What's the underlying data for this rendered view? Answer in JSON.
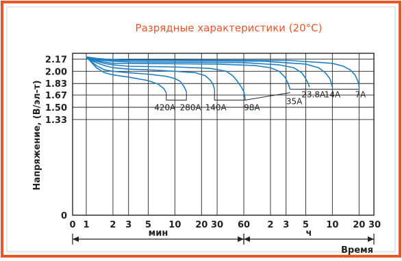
{
  "chart_data": {
    "type": "line",
    "title": "Разрядные характеристики (20°C)",
    "ylabel": "Напряжение, (В/эл-т)",
    "xlabel": "Время",
    "x_axis_segments": [
      {
        "label": "мин",
        "from": 1,
        "to": 60
      },
      {
        "label": "ч",
        "from": 60,
        "to": 1800
      }
    ],
    "x_scale": "log",
    "x_unit": "minutes",
    "xlim": [
      1,
      1800
    ],
    "ylim": [
      0,
      2.25
    ],
    "y_ticks": [
      "2.17",
      "2.00",
      "1.83",
      "1.67",
      "1.50",
      "1.33",
      "0"
    ],
    "x_ticks_min": [
      "0",
      "1",
      "2",
      "3",
      "5",
      "10",
      "20",
      "30",
      "60"
    ],
    "x_ticks_hours": [
      "2",
      "3",
      "5",
      "10",
      "20",
      "30"
    ],
    "grid": true,
    "series": [
      {
        "name": "420A",
        "points": [
          [
            1,
            2.2
          ],
          [
            1.3,
            2.05
          ],
          [
            1.6,
            1.98
          ],
          [
            2,
            1.95
          ],
          [
            3,
            1.92
          ],
          [
            5,
            1.87
          ],
          [
            6.5,
            1.82
          ],
          [
            7.5,
            1.76
          ],
          [
            8,
            1.7
          ]
        ]
      },
      {
        "name": "280A",
        "points": [
          [
            1,
            2.19
          ],
          [
            1.3,
            2.08
          ],
          [
            1.6,
            2.02
          ],
          [
            2,
            2.0
          ],
          [
            3,
            1.98
          ],
          [
            5,
            1.96
          ],
          [
            8,
            1.93
          ],
          [
            10,
            1.9
          ],
          [
            11.5,
            1.86
          ],
          [
            12.5,
            1.8
          ],
          [
            13.5,
            1.72
          ]
        ]
      },
      {
        "name": "140A",
        "points": [
          [
            1,
            2.18
          ],
          [
            1.3,
            2.12
          ],
          [
            1.6,
            2.08
          ],
          [
            2,
            2.05
          ],
          [
            3,
            2.03
          ],
          [
            5,
            2.02
          ],
          [
            10,
            2.0
          ],
          [
            17,
            1.98
          ],
          [
            22,
            1.94
          ],
          [
            25,
            1.88
          ],
          [
            27,
            1.82
          ],
          [
            28,
            1.75
          ]
        ]
      },
      {
        "name": "98A",
        "points": [
          [
            1,
            2.18
          ],
          [
            1.3,
            2.14
          ],
          [
            1.6,
            2.11
          ],
          [
            2,
            2.09
          ],
          [
            3,
            2.07
          ],
          [
            10,
            2.06
          ],
          [
            25,
            2.04
          ],
          [
            38,
            2.0
          ],
          [
            45,
            1.94
          ],
          [
            50,
            1.87
          ],
          [
            55,
            1.8
          ],
          [
            60,
            1.72
          ],
          [
            62,
            1.63
          ]
        ]
      },
      {
        "name": "35A",
        "points": [
          [
            1,
            2.18
          ],
          [
            1.3,
            2.15
          ],
          [
            1.6,
            2.13
          ],
          [
            2,
            2.11
          ],
          [
            3,
            2.11
          ],
          [
            30,
            2.1
          ],
          [
            80,
            2.08
          ],
          [
            120,
            2.05
          ],
          [
            150,
            2.0
          ],
          [
            175,
            1.92
          ],
          [
            190,
            1.83
          ],
          [
            200,
            1.75
          ]
        ]
      },
      {
        "name": "23.8A",
        "points": [
          [
            1,
            2.19
          ],
          [
            1.3,
            2.16
          ],
          [
            1.6,
            2.15
          ],
          [
            2,
            2.14
          ],
          [
            3,
            2.13
          ],
          [
            60,
            2.12
          ],
          [
            150,
            2.09
          ],
          [
            220,
            2.05
          ],
          [
            270,
            1.98
          ],
          [
            300,
            1.9
          ],
          [
            320,
            1.83
          ],
          [
            330,
            1.78
          ]
        ]
      },
      {
        "name": "14A",
        "points": [
          [
            1,
            2.19
          ],
          [
            1.3,
            2.17
          ],
          [
            1.6,
            2.16
          ],
          [
            2,
            2.15
          ],
          [
            3,
            2.15
          ],
          [
            100,
            2.14
          ],
          [
            300,
            2.1
          ],
          [
            420,
            2.05
          ],
          [
            500,
            1.98
          ],
          [
            560,
            1.9
          ],
          [
            585,
            1.83
          ],
          [
            600,
            1.78
          ]
        ]
      },
      {
        "name": "7A",
        "points": [
          [
            1,
            2.2
          ],
          [
            1.3,
            2.18
          ],
          [
            1.6,
            2.17
          ],
          [
            3,
            2.16
          ],
          [
            200,
            2.15
          ],
          [
            600,
            2.11
          ],
          [
            800,
            2.07
          ],
          [
            950,
            2.02
          ],
          [
            1080,
            1.95
          ],
          [
            1150,
            1.88
          ],
          [
            1190,
            1.82
          ],
          [
            1200,
            1.78
          ]
        ]
      }
    ],
    "series_color": "#1f7ec2",
    "frame_color": "#e8562a",
    "title_color": "#e8562a"
  }
}
